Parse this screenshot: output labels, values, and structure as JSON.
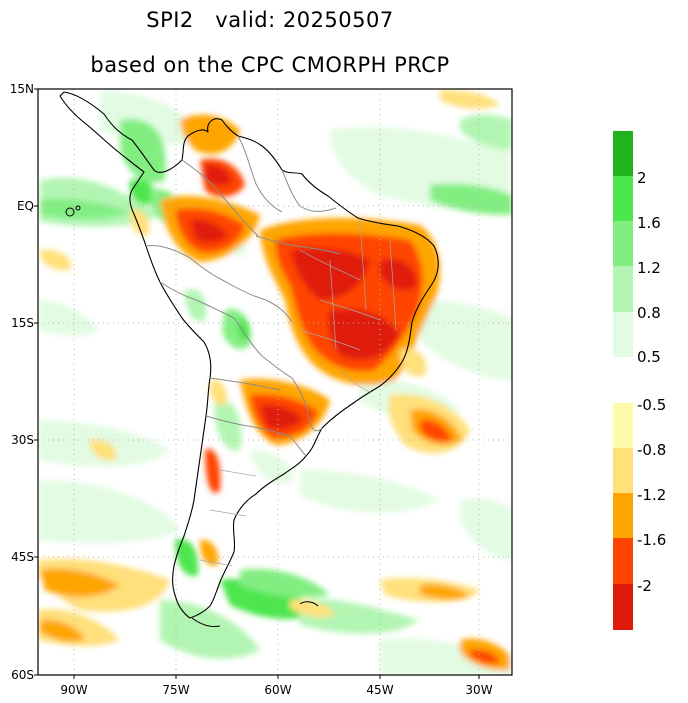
{
  "title_line1": "SPI2   valid: 20250507",
  "title_line2": "based on the CPC CMORPH PRCP",
  "lat_ticks": [
    {
      "value": 15,
      "label": "15N"
    },
    {
      "value": 0,
      "label": "EQ"
    },
    {
      "value": -15,
      "label": "15S"
    },
    {
      "value": -30,
      "label": "30S"
    },
    {
      "value": -45,
      "label": "45S"
    },
    {
      "value": -60,
      "label": "60S"
    }
  ],
  "lon_ticks": [
    {
      "value": -90,
      "label": "90W"
    },
    {
      "value": -75,
      "label": "75W"
    },
    {
      "value": -60,
      "label": "60W"
    },
    {
      "value": -45,
      "label": "45W"
    },
    {
      "value": -30,
      "label": "30W"
    }
  ],
  "map_extent": {
    "lon_min": -95,
    "lon_max": -25,
    "lat_min": -60,
    "lat_max": 15
  },
  "colorbar": {
    "wet_colors": [
      "#1fb41f",
      "#4ee64e",
      "#82ee82",
      "#b2f5b2",
      "#e2fbe2"
    ],
    "wet_labels": [
      "2",
      "1.6",
      "1.2",
      "0.8",
      "0.5"
    ],
    "dry_colors": [
      "#fffaaa",
      "#ffe07a",
      "#ffa500",
      "#ff4400",
      "#e01a0a"
    ],
    "dry_labels": [
      "-0.5",
      "-0.8",
      "-1.2",
      "-1.6",
      "-2"
    ]
  },
  "colors": {
    "land_outline": "#000000",
    "border": "#8c8c8c",
    "grid": "#b4b4b4",
    "neutral": "#ffffff"
  }
}
